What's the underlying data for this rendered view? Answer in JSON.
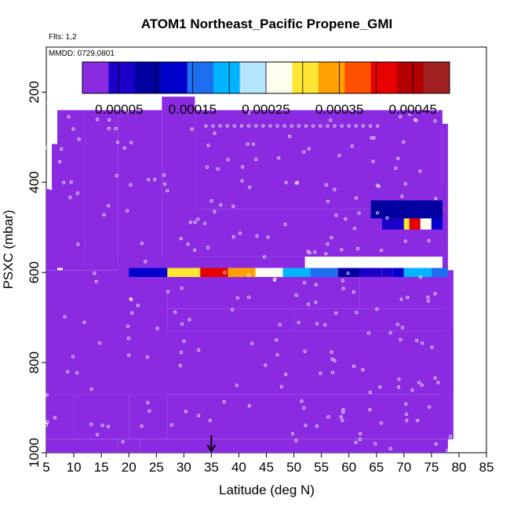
{
  "chart_data": {
    "type": "heatmap",
    "title": "ATOM1 Northeast_Pacific Propene_GMI",
    "subtitle_flights": "Flts: 1,2",
    "subtitle_dates": "MMDD: 0729,0801",
    "xlabel": "Latitude (deg N)",
    "ylabel": "PSXC (mbar)",
    "xlim": [
      5,
      85
    ],
    "ylim": [
      1000,
      100
    ],
    "xticks": [
      "5",
      "10",
      "15",
      "20",
      "25",
      "30",
      "35",
      "40",
      "45",
      "50",
      "55",
      "60",
      "65",
      "70",
      "75",
      "80",
      "85"
    ],
    "yticks": [
      "200",
      "400",
      "600",
      "800",
      "1000"
    ],
    "colorbar": {
      "range": [
        0,
        0.0005
      ],
      "ticks": [
        "0.00005",
        "0.00015",
        "0.00025",
        "0.00035",
        "0.00045"
      ],
      "colors": [
        "#8a2be2",
        "#1a00c8",
        "#0000a0",
        "#0000cd",
        "#1e6ef0",
        "#00b4ff",
        "#b4e6ff",
        "#fffff0",
        "#ffe632",
        "#ffa000",
        "#ff5000",
        "#e60000",
        "#b40000",
        "#a02020"
      ]
    },
    "cells": [
      [
        5,
        6,
        415,
        595,
        2e-06
      ],
      [
        6,
        7,
        315,
        595,
        2e-06
      ],
      [
        7,
        8,
        240,
        590,
        2e-06
      ],
      [
        8,
        12,
        240,
        595,
        2e-06
      ],
      [
        12,
        18,
        240,
        595,
        2e-06
      ],
      [
        18,
        26,
        240,
        595,
        2e-06
      ],
      [
        26,
        32,
        210,
        595,
        2e-06
      ],
      [
        32,
        77,
        240,
        460,
        2e-06
      ],
      [
        77,
        78,
        270,
        460,
        3e-06
      ],
      [
        5,
        27,
        595,
        870,
        2e-06
      ],
      [
        27,
        77,
        460,
        565,
        3e-06
      ],
      [
        77,
        78,
        460,
        595,
        6e-06
      ],
      [
        77,
        79,
        595,
        870,
        4e-06
      ],
      [
        18,
        30,
        565,
        640,
        4e-06
      ],
      [
        30,
        52,
        565,
        610,
        6e-06
      ],
      [
        27,
        45,
        610,
        680,
        6e-06
      ],
      [
        45,
        62,
        610,
        680,
        8e-06
      ],
      [
        62,
        78,
        610,
        680,
        1.2e-05
      ],
      [
        27,
        50,
        680,
        730,
        3e-06
      ],
      [
        50,
        78,
        680,
        730,
        5e-06
      ],
      [
        27,
        79,
        730,
        870,
        4e-06
      ],
      [
        26,
        27,
        730,
        870,
        3e-06
      ],
      [
        5,
        10,
        870,
        970,
        7e-06
      ],
      [
        10,
        20,
        870,
        970,
        9e-06
      ],
      [
        20,
        27,
        870,
        970,
        6e-06
      ],
      [
        27,
        45,
        870,
        970,
        7e-06
      ],
      [
        45,
        79,
        870,
        970,
        8e-06
      ],
      [
        5,
        18,
        970,
        1010,
        1.2e-05
      ],
      [
        18,
        22,
        970,
        1010,
        2e-05
      ],
      [
        22,
        78,
        970,
        1010,
        1.5e-05
      ],
      [
        69,
        72,
        510,
        560,
        0.0
      ],
      [
        20,
        27,
        590,
        610,
        0.00012
      ],
      [
        27,
        33,
        590,
        610,
        0.0003
      ],
      [
        33,
        38,
        590,
        610,
        0.0004
      ],
      [
        38,
        43,
        590,
        610,
        0.00035
      ],
      [
        43,
        48,
        590,
        610,
        0.00028
      ],
      [
        48,
        53,
        590,
        610,
        0.0002
      ],
      [
        53,
        58,
        590,
        610,
        0.00015
      ],
      [
        58,
        62,
        590,
        610,
        8e-05
      ],
      [
        62,
        66,
        590,
        610,
        5e-05
      ],
      [
        66,
        68,
        590,
        610,
        6e-05
      ],
      [
        68,
        70,
        590,
        610,
        0.00012
      ],
      [
        70,
        75,
        590,
        610,
        0.00018
      ],
      [
        75,
        78,
        590,
        610,
        0.00016
      ],
      [
        66,
        70,
        480,
        505,
        6e-05
      ],
      [
        70,
        71,
        480,
        505,
        0.0003
      ],
      [
        71,
        73,
        480,
        505,
        0.00042
      ],
      [
        73,
        75,
        480,
        505,
        0.00025
      ],
      [
        75,
        77,
        480,
        505,
        0.00012
      ],
      [
        66,
        77,
        505,
        530,
        1e-05
      ],
      [
        64,
        77,
        440,
        480,
        8e-05
      ],
      [
        66,
        77,
        405,
        440,
        1e-05
      ],
      [
        66,
        77,
        540,
        560,
        3e-05
      ]
    ],
    "arrow_x": 35
  }
}
